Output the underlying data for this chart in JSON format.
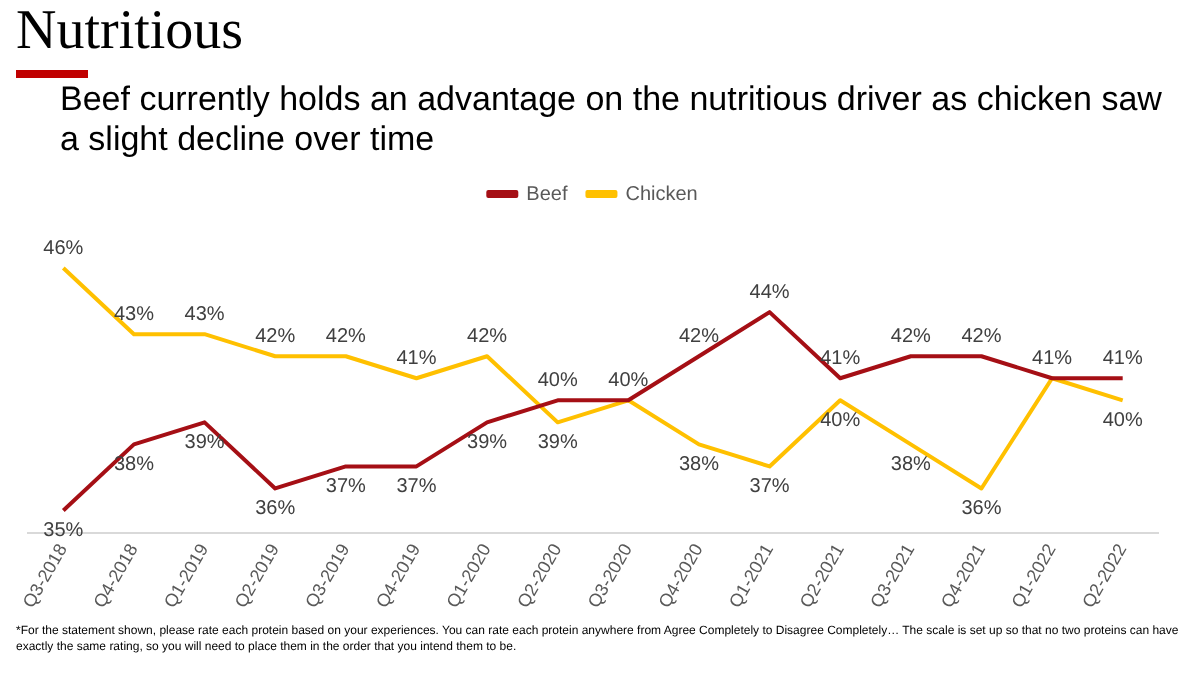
{
  "chart_data": {
    "type": "line",
    "title": "Nutritious",
    "subtitle": "Beef currently holds an advantage on the nutritious driver as chicken saw a slight decline over time",
    "categories": [
      "Q3-2018",
      "Q4-2018",
      "Q1-2019",
      "Q2-2019",
      "Q3-2019",
      "Q4-2019",
      "Q1-2020",
      "Q2-2020",
      "Q3-2020",
      "Q4-2020",
      "Q1-2021",
      "Q2-2021",
      "Q3-2021",
      "Q4-2021",
      "Q1-2022",
      "Q2-2022"
    ],
    "series": [
      {
        "name": "Beef",
        "color": "#a50f15",
        "values": [
          35,
          38,
          39,
          36,
          37,
          37,
          39,
          40,
          40,
          42,
          44,
          41,
          42,
          42,
          41,
          41
        ],
        "value_labels": [
          "35%",
          "38%",
          "39%",
          "36%",
          "37%",
          "37%",
          "39%",
          "40%",
          "40%",
          "42%",
          "44%",
          "41%",
          "42%",
          "42%",
          "41%",
          "41%"
        ]
      },
      {
        "name": "Chicken",
        "color": "#ffc000",
        "values": [
          46,
          43,
          43,
          42,
          42,
          41,
          42,
          39,
          40,
          38,
          37,
          40,
          38,
          36,
          41,
          40
        ],
        "value_labels": [
          "46%",
          "43%",
          "43%",
          "42%",
          "42%",
          "41%",
          "42%",
          "39%",
          null,
          "38%",
          "37%",
          "40%",
          "38%",
          "36%",
          null,
          "40%"
        ]
      }
    ],
    "legend": "top",
    "grid": false,
    "marker": "none",
    "line_style": "solid",
    "annotations": [
      "*For the statement shown, please rate each protein based on your experiences. You can rate each protein anywhere from Agree Completely to Disagree Completely… The scale is set up so that no two proteins can have exactly the same rating, so you will need to place them in the order that you intend them to be."
    ]
  }
}
